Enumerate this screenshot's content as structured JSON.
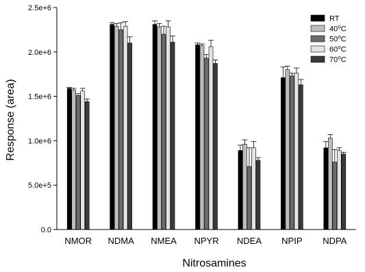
{
  "chart_data": {
    "type": "bar",
    "xlabel": "Nitrosamines",
    "ylabel": "Response (area)",
    "ylim": [
      0,
      2500000
    ],
    "yticks": [
      0,
      500000,
      1000000,
      1500000,
      2000000,
      2500000
    ],
    "ytick_labels": [
      "0.0",
      "5.0e+5",
      "1.0e+6",
      "1.5e+6",
      "2.0e+6",
      "2.5e+6"
    ],
    "categories": [
      "NMOR",
      "NDMA",
      "NMEA",
      "NPYR",
      "NDEA",
      "NPIP",
      "NDPA"
    ],
    "error_bars": true,
    "grid": false,
    "legend_position": "top-right",
    "series": [
      {
        "name": "RT",
        "color": "#000000",
        "values": [
          1590000,
          2310000,
          2310000,
          2080000,
          890000,
          1710000,
          920000
        ],
        "errors": [
          10000,
          20000,
          40000,
          20000,
          60000,
          120000,
          70000
        ]
      },
      {
        "name": "40°C",
        "color": "#bdbdbd",
        "values": [
          1570000,
          2290000,
          2280000,
          2070000,
          960000,
          1800000,
          1030000
        ],
        "errors": [
          20000,
          30000,
          40000,
          20000,
          50000,
          40000,
          40000
        ]
      },
      {
        "name": "50°C",
        "color": "#6b6b6b",
        "values": [
          1510000,
          2250000,
          2200000,
          1930000,
          710000,
          1730000,
          760000
        ],
        "errors": [
          20000,
          80000,
          90000,
          40000,
          210000,
          30000,
          140000
        ]
      },
      {
        "name": "60°C",
        "color": "#e4e4e4",
        "values": [
          1560000,
          2290000,
          2280000,
          2060000,
          920000,
          1760000,
          890000
        ],
        "errors": [
          30000,
          50000,
          70000,
          70000,
          70000,
          60000,
          30000
        ]
      },
      {
        "name": "70°C",
        "color": "#3a3a3a",
        "values": [
          1440000,
          2100000,
          2110000,
          1870000,
          780000,
          1630000,
          850000
        ],
        "errors": [
          30000,
          70000,
          70000,
          40000,
          30000,
          60000,
          20000
        ]
      }
    ]
  }
}
